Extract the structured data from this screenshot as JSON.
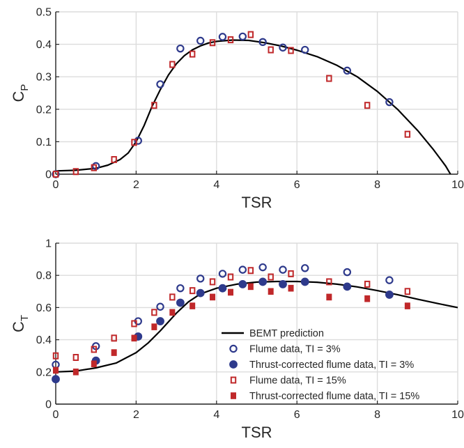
{
  "colors": {
    "bemt": "#000000",
    "flume_blue": "#2e3a8c",
    "flume_red": "#c0282a",
    "grid": "#dcdcdc",
    "axis": "#262626"
  },
  "chart_data": [
    {
      "type": "scatter",
      "xlabel": "TSR",
      "ylabel_main": "C",
      "ylabel_sub": "P",
      "xlim": [
        0,
        10
      ],
      "ylim": [
        0,
        0.5
      ],
      "xticks": [
        0,
        2,
        4,
        6,
        8,
        10
      ],
      "yticks": [
        0,
        0.1,
        0.2,
        0.3,
        0.4,
        0.5
      ],
      "xtick_labels": [
        "0",
        "2",
        "4",
        "6",
        "8",
        "10"
      ],
      "ytick_labels": [
        "0",
        "0.1",
        "0.2",
        "0.3",
        "0.4",
        "0.5"
      ],
      "grid": true,
      "bemt_curve": [
        [
          0,
          0.01
        ],
        [
          0.5,
          0.012
        ],
        [
          1.0,
          0.018
        ],
        [
          1.3,
          0.028
        ],
        [
          1.6,
          0.045
        ],
        [
          1.8,
          0.065
        ],
        [
          2.0,
          0.1
        ],
        [
          2.2,
          0.15
        ],
        [
          2.4,
          0.21
        ],
        [
          2.6,
          0.26
        ],
        [
          2.8,
          0.305
        ],
        [
          3.0,
          0.34
        ],
        [
          3.2,
          0.365
        ],
        [
          3.4,
          0.383
        ],
        [
          3.6,
          0.395
        ],
        [
          3.8,
          0.404
        ],
        [
          4.0,
          0.409
        ],
        [
          4.4,
          0.413
        ],
        [
          4.8,
          0.412
        ],
        [
          5.2,
          0.405
        ],
        [
          5.6,
          0.395
        ],
        [
          6.0,
          0.382
        ],
        [
          6.5,
          0.362
        ],
        [
          7.0,
          0.335
        ],
        [
          7.5,
          0.3
        ],
        [
          8.0,
          0.255
        ],
        [
          8.5,
          0.2
        ],
        [
          9.0,
          0.135
        ],
        [
          9.4,
          0.075
        ],
        [
          9.7,
          0.025
        ],
        [
          9.82,
          0.0
        ]
      ],
      "flume_tsr3": [
        [
          0,
          0.0
        ],
        [
          1.0,
          0.025
        ],
        [
          2.05,
          0.103
        ],
        [
          2.6,
          0.277
        ],
        [
          3.1,
          0.387
        ],
        [
          3.6,
          0.411
        ],
        [
          4.15,
          0.423
        ],
        [
          4.65,
          0.424
        ],
        [
          5.15,
          0.407
        ],
        [
          5.65,
          0.39
        ],
        [
          6.2,
          0.383
        ],
        [
          7.25,
          0.319
        ],
        [
          8.3,
          0.222
        ]
      ],
      "flume_tsr15": [
        [
          0,
          0.0
        ],
        [
          0.5,
          0.008
        ],
        [
          0.95,
          0.02
        ],
        [
          1.45,
          0.045
        ],
        [
          1.95,
          0.098
        ],
        [
          2.45,
          0.212
        ],
        [
          2.9,
          0.338
        ],
        [
          3.4,
          0.37
        ],
        [
          3.9,
          0.405
        ],
        [
          4.35,
          0.414
        ],
        [
          4.85,
          0.43
        ],
        [
          5.35,
          0.383
        ],
        [
          5.85,
          0.381
        ],
        [
          6.8,
          0.295
        ],
        [
          7.75,
          0.212
        ],
        [
          8.75,
          0.123
        ]
      ]
    },
    {
      "type": "scatter",
      "xlabel": "TSR",
      "ylabel_main": "C",
      "ylabel_sub": "T",
      "xlim": [
        0,
        10
      ],
      "ylim": [
        0,
        1
      ],
      "xticks": [
        0,
        2,
        4,
        6,
        8,
        10
      ],
      "yticks": [
        0,
        0.2,
        0.4,
        0.6,
        0.8,
        1
      ],
      "xtick_labels": [
        "0",
        "2",
        "4",
        "6",
        "8",
        "10"
      ],
      "ytick_labels": [
        "0",
        "0.2",
        "0.4",
        "0.6",
        "0.8",
        "1"
      ],
      "grid": true,
      "legend_position": "bottom-right",
      "legend": [
        {
          "label": "BEMT prediction",
          "marker": "line"
        },
        {
          "label": "Flume data, TI = 3%",
          "marker": "open-circle"
        },
        {
          "label": "Thrust-corrected flume data, TI = 3%",
          "marker": "filled-circle"
        },
        {
          "label": "Flume data, TI = 15%",
          "marker": "open-square"
        },
        {
          "label": "Thrust-corrected flume data, TI = 15%",
          "marker": "filled-square"
        }
      ],
      "bemt_curve": [
        [
          0,
          0.2
        ],
        [
          0.5,
          0.205
        ],
        [
          1.0,
          0.225
        ],
        [
          1.5,
          0.255
        ],
        [
          2.0,
          0.32
        ],
        [
          2.3,
          0.38
        ],
        [
          2.6,
          0.455
        ],
        [
          3.0,
          0.565
        ],
        [
          3.3,
          0.635
        ],
        [
          3.6,
          0.685
        ],
        [
          4.0,
          0.72
        ],
        [
          4.5,
          0.745
        ],
        [
          5.0,
          0.758
        ],
        [
          5.5,
          0.762
        ],
        [
          6.0,
          0.762
        ],
        [
          6.5,
          0.757
        ],
        [
          7.0,
          0.745
        ],
        [
          7.5,
          0.728
        ],
        [
          8.0,
          0.705
        ],
        [
          8.5,
          0.68
        ],
        [
          9.0,
          0.652
        ],
        [
          9.5,
          0.625
        ],
        [
          10.0,
          0.6
        ]
      ],
      "flume_tsr3": [
        [
          0,
          0.245
        ],
        [
          1.0,
          0.36
        ],
        [
          2.05,
          0.515
        ],
        [
          2.6,
          0.605
        ],
        [
          3.1,
          0.72
        ],
        [
          3.6,
          0.78
        ],
        [
          4.15,
          0.81
        ],
        [
          4.65,
          0.835
        ],
        [
          5.15,
          0.85
        ],
        [
          5.65,
          0.835
        ],
        [
          6.2,
          0.845
        ],
        [
          7.25,
          0.82
        ],
        [
          8.3,
          0.77
        ]
      ],
      "thrust_corrected_tsr3": [
        [
          0,
          0.155
        ],
        [
          1.0,
          0.27
        ],
        [
          2.05,
          0.42
        ],
        [
          2.6,
          0.515
        ],
        [
          3.1,
          0.63
        ],
        [
          3.6,
          0.69
        ],
        [
          4.15,
          0.72
        ],
        [
          4.65,
          0.745
        ],
        [
          5.15,
          0.76
        ],
        [
          5.65,
          0.745
        ],
        [
          6.2,
          0.76
        ],
        [
          7.25,
          0.73
        ],
        [
          8.3,
          0.68
        ]
      ],
      "flume_tsr15": [
        [
          0,
          0.3
        ],
        [
          0.5,
          0.29
        ],
        [
          0.95,
          0.34
        ],
        [
          1.45,
          0.41
        ],
        [
          1.95,
          0.5
        ],
        [
          2.45,
          0.57
        ],
        [
          2.9,
          0.665
        ],
        [
          3.4,
          0.705
        ],
        [
          3.9,
          0.76
        ],
        [
          4.35,
          0.79
        ],
        [
          4.85,
          0.83
        ],
        [
          5.35,
          0.79
        ],
        [
          5.85,
          0.81
        ],
        [
          6.8,
          0.76
        ],
        [
          7.75,
          0.745
        ],
        [
          8.75,
          0.7
        ]
      ],
      "thrust_corrected_tsr15": [
        [
          0,
          0.21
        ],
        [
          0.5,
          0.2
        ],
        [
          0.95,
          0.25
        ],
        [
          1.45,
          0.32
        ],
        [
          1.95,
          0.41
        ],
        [
          2.45,
          0.48
        ],
        [
          2.9,
          0.57
        ],
        [
          3.4,
          0.61
        ],
        [
          3.9,
          0.665
        ],
        [
          4.35,
          0.695
        ],
        [
          4.85,
          0.73
        ],
        [
          5.35,
          0.7
        ],
        [
          5.85,
          0.72
        ],
        [
          6.8,
          0.665
        ],
        [
          7.75,
          0.655
        ],
        [
          8.75,
          0.61
        ]
      ]
    }
  ]
}
